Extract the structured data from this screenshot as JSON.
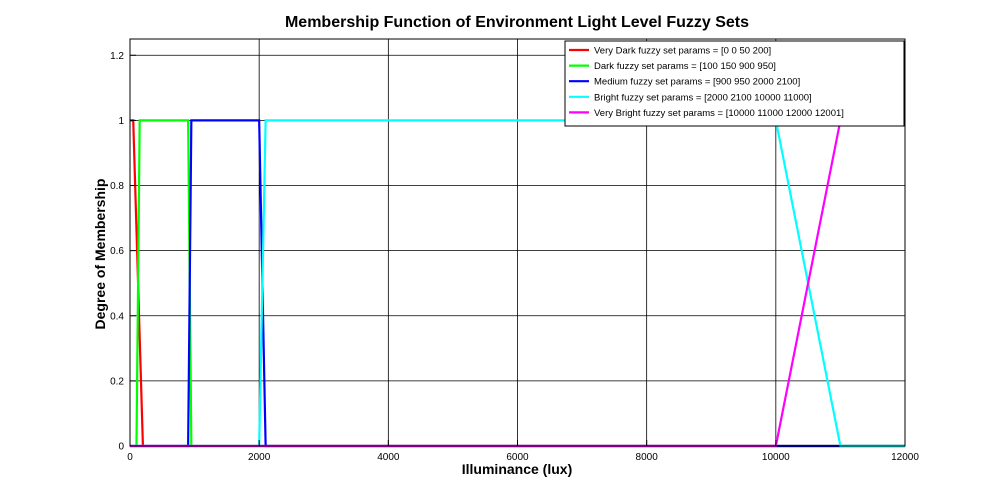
{
  "chart_data": {
    "type": "line",
    "title": "Membership Function of Environment Light Level Fuzzy Sets",
    "xlabel": "Illuminance (lux)",
    "ylabel": "Degree of Membership",
    "xlim": [
      0,
      12000
    ],
    "ylim": [
      0,
      1.25
    ],
    "xticks": [
      0,
      2000,
      4000,
      6000,
      8000,
      10000,
      12000
    ],
    "yticks": [
      0,
      0.2,
      0.4,
      0.6,
      0.8,
      1,
      1.2
    ],
    "grid": true,
    "legend_position": "top-right",
    "series": [
      {
        "name": "Very Dark fuzzy set params = [0 0 50 200]",
        "color": "#ff0000",
        "x": [
          0,
          0,
          50,
          200,
          12000
        ],
        "y": [
          1,
          1,
          1,
          0,
          0
        ]
      },
      {
        "name": "Dark fuzzy set params = [100 150 900 950]",
        "color": "#00ff00",
        "x": [
          0,
          100,
          150,
          900,
          950,
          12000
        ],
        "y": [
          0,
          0,
          1,
          1,
          0,
          0
        ]
      },
      {
        "name": "Medium fuzzy set params = [900 950 2000 2100]",
        "color": "#0000ff",
        "x": [
          0,
          900,
          950,
          2000,
          2100,
          12000
        ],
        "y": [
          0,
          0,
          1,
          1,
          0,
          0
        ]
      },
      {
        "name": "Bright fuzzy set params = [2000 2100 10000 11000]",
        "color": "#00ffff",
        "x": [
          0,
          2000,
          2100,
          10000,
          11000,
          12000
        ],
        "y": [
          0,
          0,
          1,
          1,
          0,
          0
        ]
      },
      {
        "name": "Very Bright fuzzy set params = [10000 11000 12000 12001]",
        "color": "#ff00ff",
        "x": [
          0,
          10000,
          11000,
          12000
        ],
        "y": [
          0,
          0,
          1,
          1
        ]
      }
    ]
  }
}
